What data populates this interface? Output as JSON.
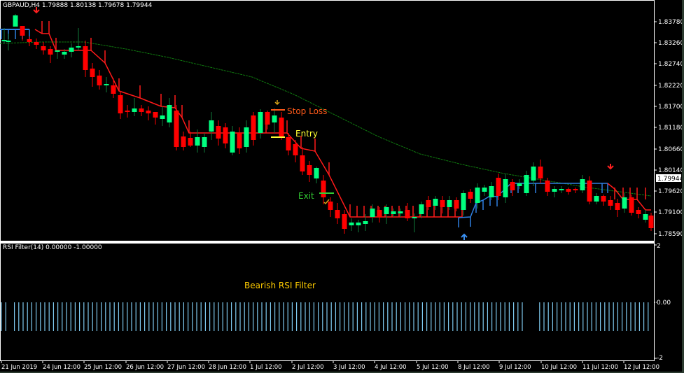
{
  "window": {
    "symbol_header": "GBPAUD,H4  1.79888 1.80138 1.79678 1.79944",
    "symbol": "GBPAUD",
    "timeframe": "H4",
    "ohlc": {
      "open": "1.79888",
      "high": "1.80138",
      "low": "1.79678",
      "close": "1.79944"
    }
  },
  "price_axis": {
    "labels": [
      "1.83780",
      "1.83260",
      "1.82740",
      "1.82220",
      "1.81700",
      "1.81180",
      "1.80660",
      "1.80140",
      "1.79620",
      "1.79100",
      "1.78590"
    ],
    "current_price": "1.79944"
  },
  "indicator": {
    "title": "RSI Filter(14) 0.00000 -1.00000",
    "axis_labels": [
      "2",
      "0.00",
      "-2"
    ],
    "annotation": "Bearish RSI Filter"
  },
  "time_axis": {
    "labels": [
      "21 Jun 2019",
      "24 Jun 12:00",
      "25 Jun 12:00",
      "26 Jun 12:00",
      "27 Jun 12:00",
      "28 Jun 12:00",
      "1 Jul 12:00",
      "2 Jul 12:00",
      "3 Jul 12:00",
      "4 Jul 12:00",
      "5 Jul 12:00",
      "8 Jul 12:00",
      "9 Jul 12:00",
      "10 Jul 12:00",
      "11 Jul 12:00",
      "12 Jul 12:00"
    ]
  },
  "annotations": {
    "stop_loss": "Stop Loss",
    "entry": "Entry",
    "exit": "Exit"
  },
  "colors": {
    "bull": "#00ff7f",
    "bear": "#ff0000",
    "trail_bear": "#ff1a1a",
    "trail_bull": "#2f7fe0",
    "ma": "#0f7a0f",
    "stop_loss": "#ff5a1a",
    "entry": "#ffff33",
    "exit": "#33cc33",
    "rsi_bars": "#7ec8ee",
    "annotation_text": "#ffcc00"
  }
}
